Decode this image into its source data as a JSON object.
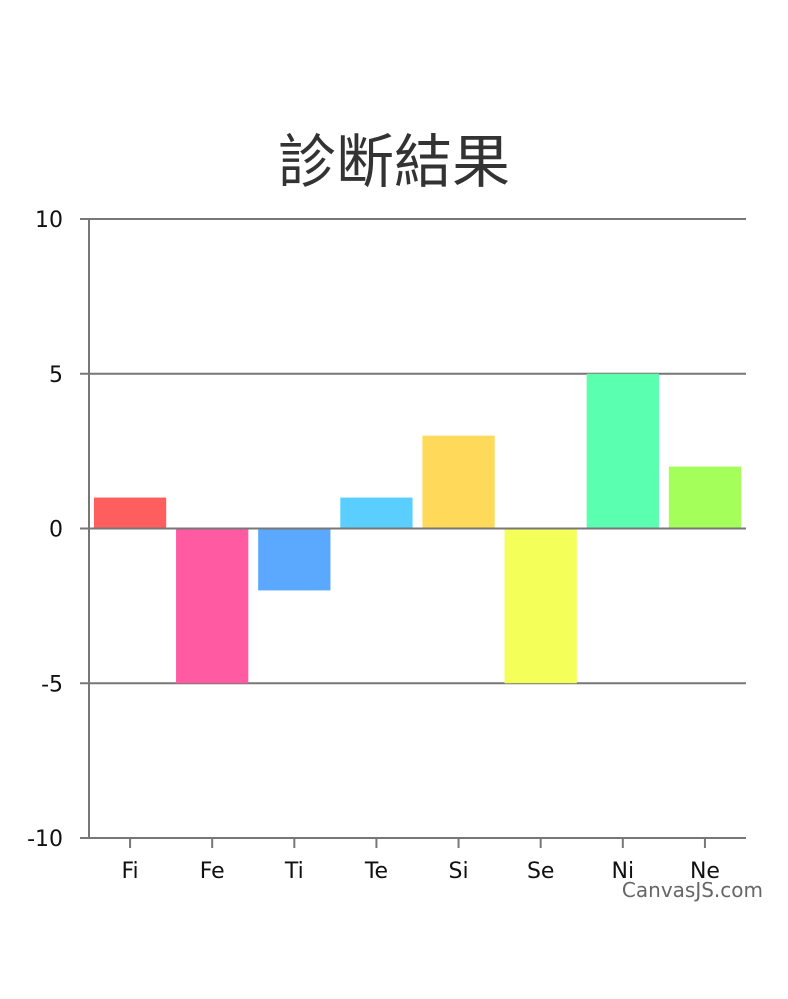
{
  "chart_data": {
    "type": "bar",
    "title": "診断結果",
    "categories": [
      "Fi",
      "Fe",
      "Ti",
      "Te",
      "Si",
      "Se",
      "Ni",
      "Ne"
    ],
    "values": [
      1,
      -5,
      -2,
      1,
      3,
      -5,
      5,
      2
    ],
    "colors": [
      "#FF5E5E",
      "#FF5AA2",
      "#5AA8FF",
      "#5ACFFF",
      "#FFDA5A",
      "#F5FF5A",
      "#5AFFB0",
      "#A5FF5A"
    ],
    "ylim": [
      -10,
      10
    ],
    "y_ticks": [
      "10",
      "5",
      "0",
      "-5",
      "-10"
    ],
    "grid": true,
    "xlabel": "",
    "ylabel": ""
  },
  "credit": "CanvasJS.com"
}
